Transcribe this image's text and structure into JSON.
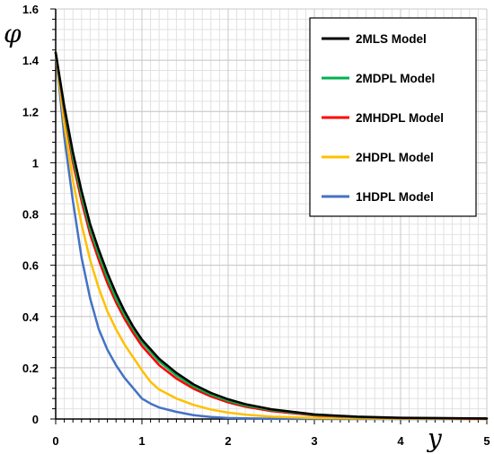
{
  "chart_data": {
    "type": "line",
    "xlabel": "y",
    "ylabel": "φ",
    "xlim": [
      0,
      5
    ],
    "ylim": [
      0,
      1.6
    ],
    "xticks": [
      "0",
      "1",
      "2",
      "3",
      "4",
      "5"
    ],
    "yticks": [
      "0",
      "0.2",
      "0.4",
      "0.6",
      "0.8",
      "1",
      "1.2",
      "1.4",
      "1.6"
    ],
    "grid": true,
    "legend_position": "top-right",
    "series": [
      {
        "name": "2MLS Model",
        "color": "#000000",
        "points": [
          [
            0,
            1.43
          ],
          [
            0.1,
            1.22
          ],
          [
            0.2,
            1.04
          ],
          [
            0.3,
            0.89
          ],
          [
            0.4,
            0.76
          ],
          [
            0.5,
            0.66
          ],
          [
            0.6,
            0.57
          ],
          [
            0.7,
            0.49
          ],
          [
            0.8,
            0.42
          ],
          [
            0.9,
            0.36
          ],
          [
            1.0,
            0.31
          ],
          [
            1.2,
            0.235
          ],
          [
            1.4,
            0.18
          ],
          [
            1.6,
            0.135
          ],
          [
            1.8,
            0.102
          ],
          [
            2.0,
            0.077
          ],
          [
            2.2,
            0.058
          ],
          [
            2.5,
            0.038
          ],
          [
            3.0,
            0.018
          ],
          [
            3.5,
            0.009
          ],
          [
            4.0,
            0.005
          ],
          [
            5.0,
            0.002
          ]
        ]
      },
      {
        "name": "2MDPL Model",
        "color": "#00b050",
        "points": [
          [
            0,
            1.43
          ],
          [
            0.1,
            1.21
          ],
          [
            0.2,
            1.02
          ],
          [
            0.3,
            0.87
          ],
          [
            0.4,
            0.74
          ],
          [
            0.5,
            0.64
          ],
          [
            0.6,
            0.55
          ],
          [
            0.7,
            0.47
          ],
          [
            0.8,
            0.405
          ],
          [
            0.9,
            0.35
          ],
          [
            1.0,
            0.3
          ],
          [
            1.2,
            0.225
          ],
          [
            1.4,
            0.17
          ],
          [
            1.6,
            0.127
          ],
          [
            1.8,
            0.095
          ],
          [
            2.0,
            0.071
          ],
          [
            2.2,
            0.053
          ],
          [
            2.5,
            0.035
          ],
          [
            3.0,
            0.016
          ],
          [
            3.5,
            0.008
          ],
          [
            4.0,
            0.004
          ],
          [
            5.0,
            0.002
          ]
        ]
      },
      {
        "name": "2MHDPL Model",
        "color": "#ff0000",
        "points": [
          [
            0,
            1.43
          ],
          [
            0.1,
            1.2
          ],
          [
            0.2,
            1.0
          ],
          [
            0.3,
            0.85
          ],
          [
            0.4,
            0.72
          ],
          [
            0.5,
            0.62
          ],
          [
            0.6,
            0.53
          ],
          [
            0.7,
            0.455
          ],
          [
            0.8,
            0.39
          ],
          [
            0.9,
            0.335
          ],
          [
            1.0,
            0.285
          ],
          [
            1.2,
            0.21
          ],
          [
            1.4,
            0.158
          ],
          [
            1.6,
            0.118
          ],
          [
            1.8,
            0.088
          ],
          [
            2.0,
            0.065
          ],
          [
            2.2,
            0.048
          ],
          [
            2.5,
            0.031
          ],
          [
            3.0,
            0.014
          ],
          [
            3.5,
            0.007
          ],
          [
            4.0,
            0.003
          ],
          [
            5.0,
            0.001
          ]
        ]
      },
      {
        "name": "2HDPL Model",
        "color": "#ffc000",
        "points": [
          [
            0,
            1.43
          ],
          [
            0.1,
            1.15
          ],
          [
            0.2,
            0.93
          ],
          [
            0.3,
            0.76
          ],
          [
            0.4,
            0.62
          ],
          [
            0.5,
            0.51
          ],
          [
            0.6,
            0.42
          ],
          [
            0.7,
            0.35
          ],
          [
            0.8,
            0.29
          ],
          [
            0.9,
            0.24
          ],
          [
            1.0,
            0.19
          ],
          [
            1.1,
            0.145
          ],
          [
            1.2,
            0.115
          ],
          [
            1.4,
            0.08
          ],
          [
            1.6,
            0.055
          ],
          [
            1.8,
            0.037
          ],
          [
            2.0,
            0.025
          ],
          [
            2.2,
            0.017
          ],
          [
            2.5,
            0.009
          ],
          [
            3.0,
            0.004
          ],
          [
            4.0,
            0.001
          ],
          [
            5.0,
            0.0
          ]
        ]
      },
      {
        "name": "1HDPL Model",
        "color": "#4472c4",
        "points": [
          [
            0,
            1.43
          ],
          [
            0.1,
            1.1
          ],
          [
            0.2,
            0.85
          ],
          [
            0.3,
            0.63
          ],
          [
            0.4,
            0.47
          ],
          [
            0.5,
            0.35
          ],
          [
            0.6,
            0.27
          ],
          [
            0.7,
            0.21
          ],
          [
            0.8,
            0.16
          ],
          [
            0.9,
            0.12
          ],
          [
            1.0,
            0.08
          ],
          [
            1.1,
            0.06
          ],
          [
            1.2,
            0.045
          ],
          [
            1.4,
            0.028
          ],
          [
            1.6,
            0.015
          ],
          [
            1.8,
            0.008
          ],
          [
            2.0,
            0.004
          ],
          [
            2.5,
            0.001
          ],
          [
            3.0,
            0.0
          ],
          [
            5.0,
            0.0
          ]
        ]
      }
    ]
  }
}
